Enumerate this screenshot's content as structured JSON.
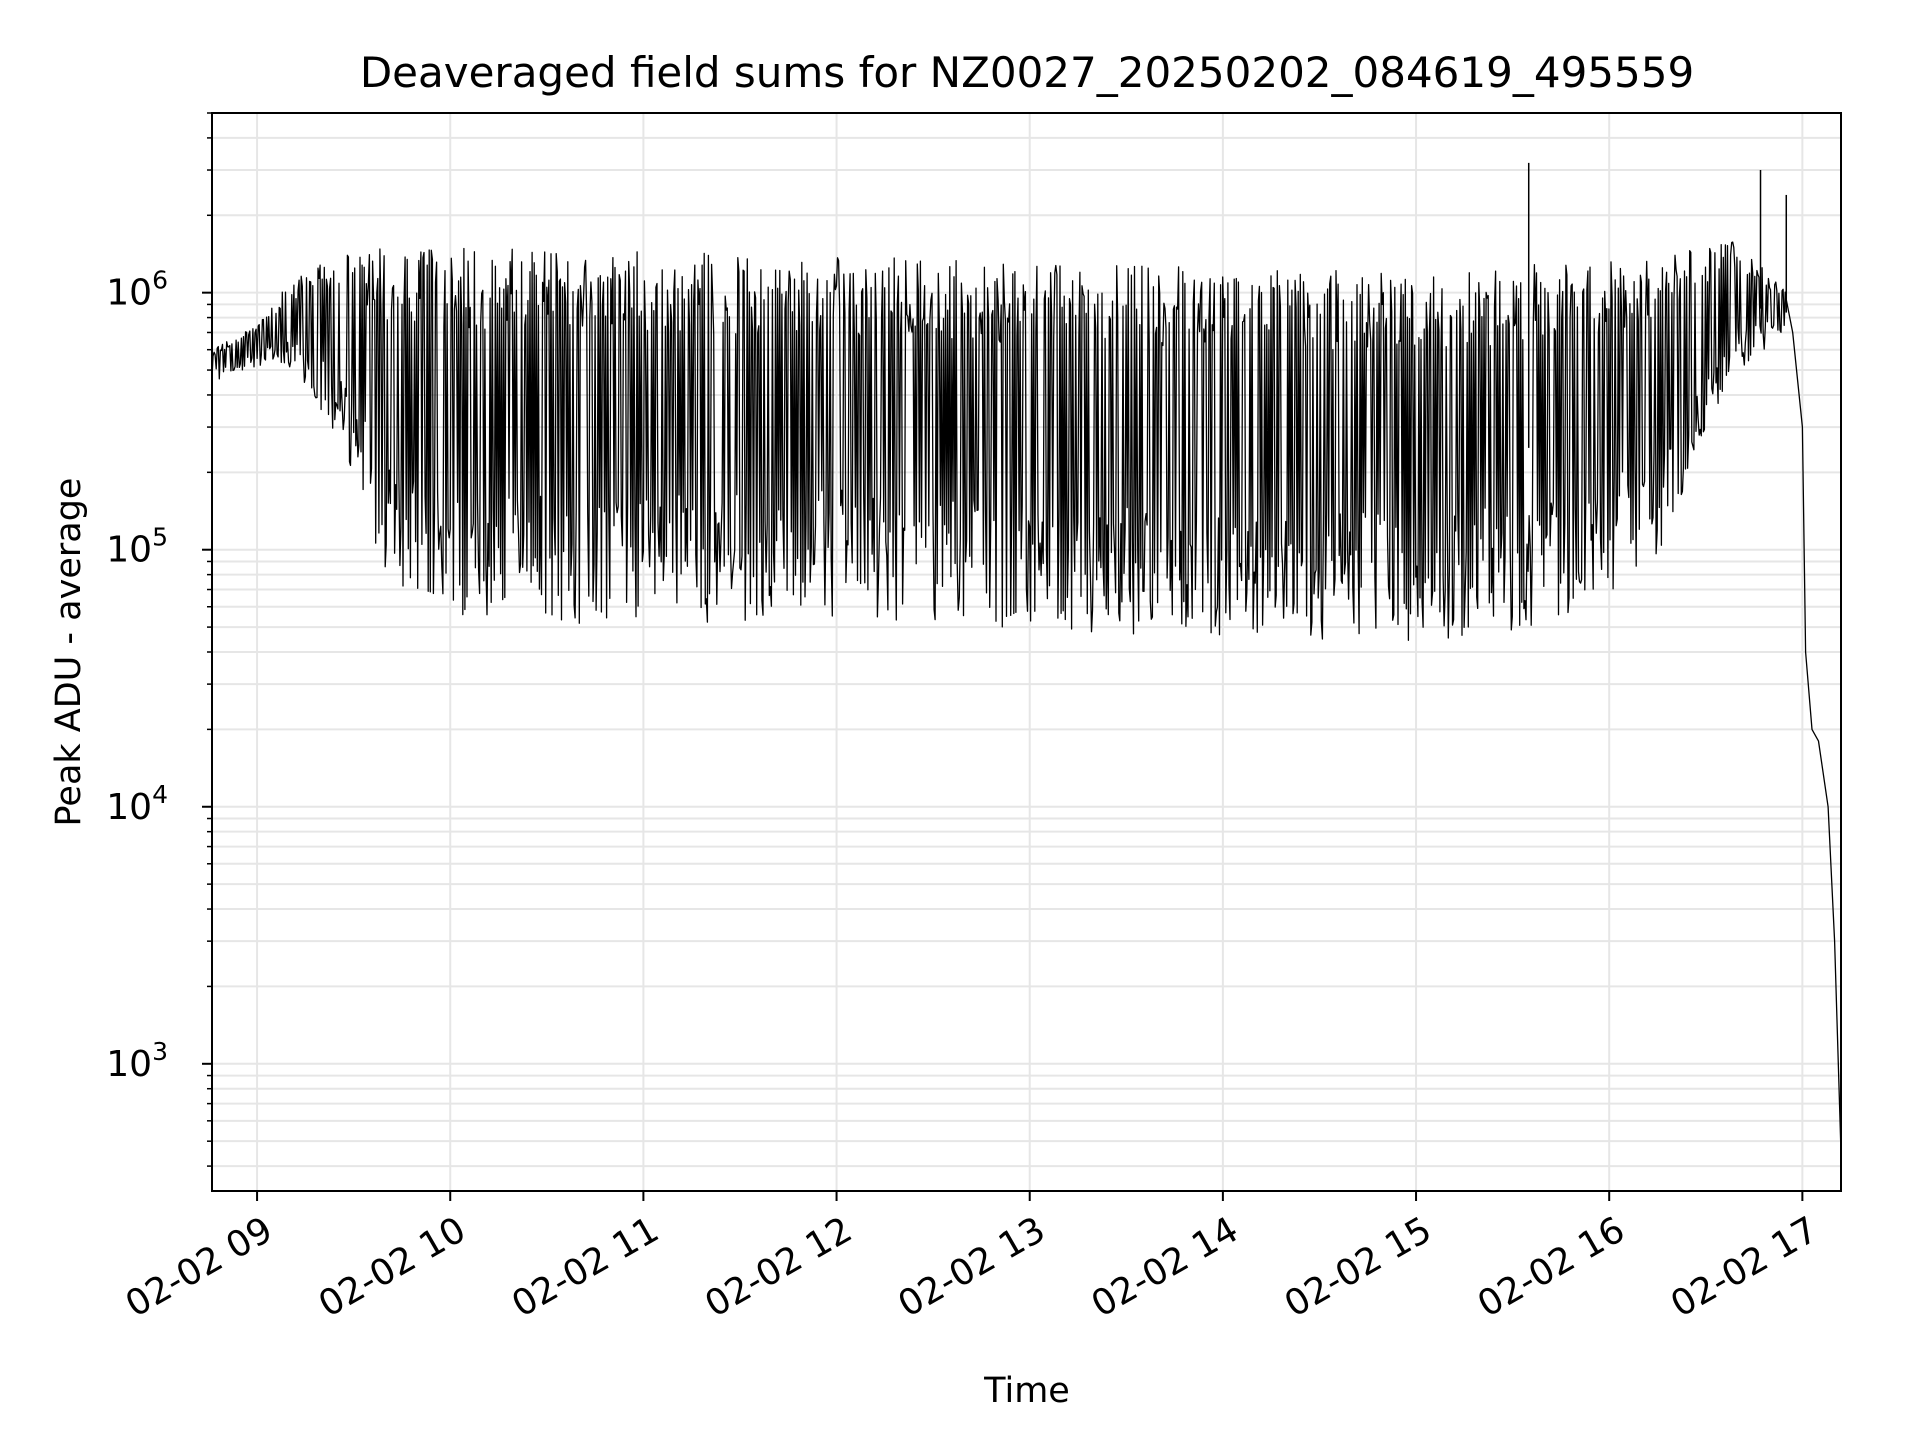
{
  "chart_data": {
    "type": "line",
    "title": "Deaveraged field sums for NZ0027_20250202_084619_495559",
    "xlabel": "Time",
    "ylabel": "Peak ADU - average",
    "x_axis": {
      "scale": "time",
      "range": [
        "02-02 08:46",
        "02-02 17:12"
      ],
      "tick_labels": [
        "02-02 09",
        "02-02 10",
        "02-02 11",
        "02-02 12",
        "02-02 13",
        "02-02 14",
        "02-02 15",
        "02-02 16",
        "02-02 17"
      ],
      "tick_label_rotation_deg": 30
    },
    "y_axis": {
      "scale": "log",
      "range": [
        320,
        5000000
      ],
      "tick_labels": [
        {
          "base": "10",
          "exp": "3",
          "value": 1000
        },
        {
          "base": "10",
          "exp": "4",
          "value": 10000
        },
        {
          "base": "10",
          "exp": "5",
          "value": 100000
        },
        {
          "base": "10",
          "exp": "6",
          "value": 1000000
        }
      ]
    },
    "grid": true,
    "grid_minor": true,
    "legend": "none",
    "colors": {
      "line": "#000000",
      "grid": "#e6e6e6",
      "axes": "#000000"
    },
    "series": [
      {
        "style": "oscillating-envelope",
        "envelope": [
          {
            "x": "02-02 08:46",
            "upper": 600000,
            "lower": 450000
          },
          {
            "x": "02-02 09:00",
            "upper": 750000,
            "lower": 520000
          },
          {
            "x": "02-02 09:10",
            "upper": 1100000,
            "lower": 500000
          },
          {
            "x": "02-02 09:20",
            "upper": 1300000,
            "lower": 350000
          },
          {
            "x": "02-02 09:30",
            "upper": 1450000,
            "lower": 200000
          },
          {
            "x": "02-02 09:40",
            "upper": 1500000,
            "lower": 75000
          },
          {
            "x": "02-02 10:00",
            "upper": 1500000,
            "lower": 55000
          },
          {
            "x": "02-02 11:00",
            "upper": 1450000,
            "lower": 50000
          },
          {
            "x": "02-02 12:00",
            "upper": 1400000,
            "lower": 55000
          },
          {
            "x": "02-02 13:00",
            "upper": 1300000,
            "lower": 48000
          },
          {
            "x": "02-02 14:00",
            "upper": 1250000,
            "lower": 45000
          },
          {
            "x": "02-02 15:00",
            "upper": 1250000,
            "lower": 42000
          },
          {
            "x": "02-02 15:45",
            "upper": 1300000,
            "lower": 50000
          },
          {
            "x": "02-02 16:10",
            "upper": 1400000,
            "lower": 80000
          },
          {
            "x": "02-02 16:20",
            "upper": 1500000,
            "lower": 120000
          },
          {
            "x": "02-02 16:30",
            "upper": 1550000,
            "lower": 300000
          },
          {
            "x": "02-02 16:40",
            "upper": 1600000,
            "lower": 500000
          },
          {
            "x": "02-02 16:55",
            "upper": 1000000,
            "lower": 700000
          }
        ],
        "spikes": [
          {
            "x": "02-02 15:35",
            "y": 3200000
          },
          {
            "x": "02-02 16:47",
            "y": 3000000
          },
          {
            "x": "02-02 16:55",
            "y": 2400000
          }
        ],
        "tail": [
          {
            "x": "02-02 16:57",
            "y": 700000
          },
          {
            "x": "02-02 17:00",
            "y": 300000
          },
          {
            "x": "02-02 17:01",
            "y": 40000
          },
          {
            "x": "02-02 17:03",
            "y": 20000
          },
          {
            "x": "02-02 17:05",
            "y": 18000
          },
          {
            "x": "02-02 17:08",
            "y": 10000
          },
          {
            "x": "02-02 17:10",
            "y": 3000
          },
          {
            "x": "02-02 17:12",
            "y": 450
          }
        ]
      }
    ]
  }
}
